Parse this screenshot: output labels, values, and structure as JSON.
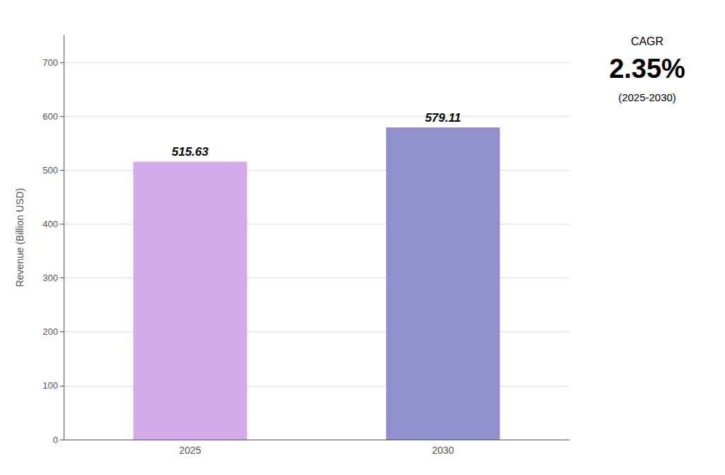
{
  "chart_data": {
    "type": "bar",
    "categories": [
      "2025",
      "2030"
    ],
    "values": [
      515.63,
      579.11
    ],
    "colors": [
      "#D4AAED",
      "#9090CC"
    ],
    "ylabel": "Revenue (Billion USD)",
    "ylim": [
      0,
      750
    ],
    "yticks": [
      0,
      100,
      200,
      300,
      400,
      500,
      600,
      700
    ],
    "grid": true,
    "data_labels": true,
    "annotations": [
      "CAGR",
      "2.35%",
      "(2025-2030)"
    ]
  }
}
